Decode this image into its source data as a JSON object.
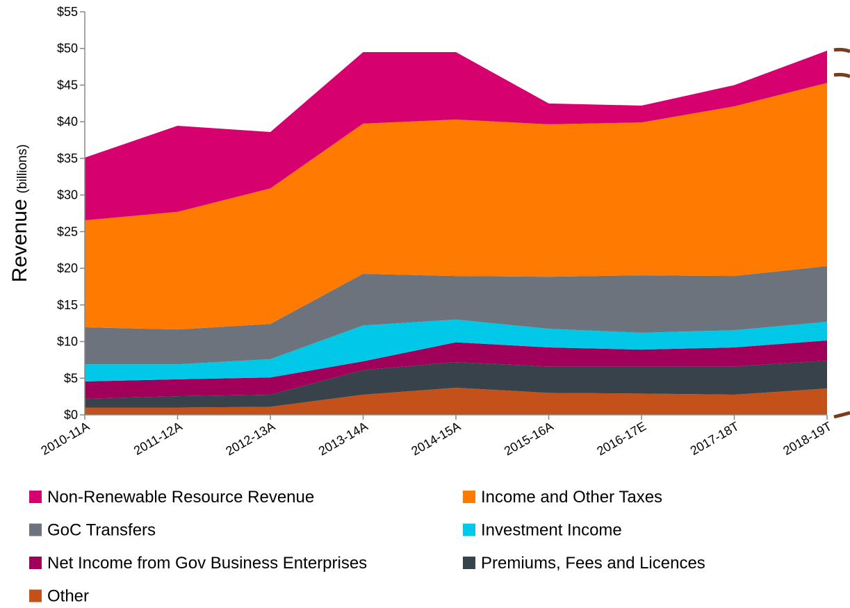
{
  "chart_data": {
    "type": "stacked_area",
    "yaxis_label": "Revenue",
    "yaxis_label_unit": "(billions)",
    "categories": [
      "2010-11A",
      "2011-12A",
      "2012-13A",
      "2013-14A",
      "2014-15A",
      "2015-16A",
      "2016-17E",
      "2017-18T",
      "2018-19T"
    ],
    "series": [
      {
        "name": "Non-Renewable Resource Revenue",
        "color": "#d6006f",
        "values": [
          8.55,
          11.75,
          7.7,
          9.75,
          9.2,
          2.85,
          2.3,
          2.9,
          4.4
        ]
      },
      {
        "name": "Income and Other Taxes",
        "color": "#ff7a00",
        "values": [
          14.6,
          16.05,
          18.5,
          20.5,
          21.35,
          20.8,
          20.85,
          23.15,
          25.0
        ]
      },
      {
        "name": "GoC Transfers",
        "color": "#6d737c",
        "values": [
          5.05,
          4.75,
          4.8,
          7.05,
          5.95,
          7.1,
          7.85,
          7.4,
          7.6
        ]
      },
      {
        "name": "Investment Income",
        "color": "#00c8e6",
        "values": [
          2.35,
          2.05,
          2.5,
          4.9,
          3.1,
          2.55,
          2.3,
          2.35,
          2.55
        ]
      },
      {
        "name": "Net Income from Gov Business Enterprises",
        "color": "#a0005a",
        "values": [
          2.35,
          2.3,
          2.35,
          1.2,
          2.7,
          2.6,
          2.3,
          2.6,
          2.75
        ]
      },
      {
        "name": "Premiums, Fees and Licences",
        "color": "#37424a",
        "values": [
          1.2,
          1.55,
          1.65,
          3.35,
          3.5,
          3.6,
          3.7,
          3.85,
          3.8
        ]
      },
      {
        "name": "Other",
        "color": "#c4501a",
        "values": [
          1.0,
          1.0,
          1.1,
          2.75,
          3.7,
          3.0,
          2.9,
          2.75,
          3.6
        ]
      }
    ],
    "ylim": [
      0,
      55
    ],
    "yticks": [
      {
        "value": 0,
        "label": "$0"
      },
      {
        "value": 5,
        "label": "$5"
      },
      {
        "value": 10,
        "label": "$10"
      },
      {
        "value": 15,
        "label": "$15"
      },
      {
        "value": 20,
        "label": "$20"
      },
      {
        "value": 25,
        "label": "$25"
      },
      {
        "value": 30,
        "label": "$30"
      },
      {
        "value": 35,
        "label": "$35"
      },
      {
        "value": 40,
        "label": "$40"
      },
      {
        "value": 45,
        "label": "$45"
      },
      {
        "value": 50,
        "label": "$50"
      },
      {
        "value": 55,
        "label": "$55"
      }
    ],
    "grid": false
  }
}
